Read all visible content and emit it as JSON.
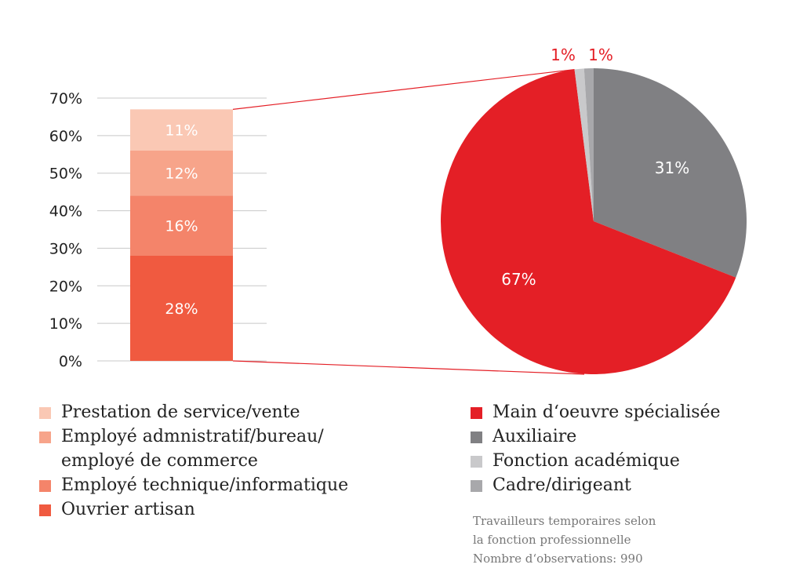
{
  "chart_data": [
    {
      "type": "bar",
      "stacked": true,
      "ylim": [
        0,
        70
      ],
      "yticks": [
        "0%",
        "10%",
        "20%",
        "30%",
        "40%",
        "50%",
        "60%",
        "70%"
      ],
      "segments": [
        {
          "name": "Ouvrier artisan",
          "value": 28,
          "label": "28%",
          "color": "#f05a40"
        },
        {
          "name": "Employé technique/informatique",
          "value": 16,
          "label": "16%",
          "color": "#f4846a"
        },
        {
          "name": "Employé admnistratif/bureau/ employé de commerce",
          "value": 12,
          "label": "12%",
          "color": "#f7a48a"
        },
        {
          "name": "Prestation de service/vente",
          "value": 11,
          "label": "11%",
          "color": "#fac8b4"
        }
      ],
      "grid": true
    },
    {
      "type": "pie",
      "slices": [
        {
          "name": "Auxiliaire",
          "value": 31,
          "label": "31%",
          "color": "#808083"
        },
        {
          "name": "Main d‘oeuvre spécialisée",
          "value": 67,
          "label": "67%",
          "color": "#e41f26"
        },
        {
          "name": "Fonction académique",
          "value": 1,
          "label": "1%",
          "color": "#c9c9cb"
        },
        {
          "name": "Cadre/dirigeant",
          "value": 1,
          "label": "1%",
          "color": "#a8a8ab"
        }
      ]
    }
  ],
  "legend_left": [
    {
      "text": "Prestation de service/vente",
      "color": "#fac8b4"
    },
    {
      "text": "Employé admnistratif/bureau/",
      "text2": "employé de commerce",
      "color": "#f7a48a"
    },
    {
      "text": "Employé technique/informatique",
      "color": "#f4846a"
    },
    {
      "text": "Ouvrier artisan",
      "color": "#f05a40"
    }
  ],
  "legend_right": [
    {
      "text": "Main d‘oeuvre spécialisée",
      "color": "#e41f26"
    },
    {
      "text": "Auxiliaire",
      "color": "#808083"
    },
    {
      "text": "Fonction académique",
      "color": "#c9c9cb"
    },
    {
      "text": "Cadre/dirigeant",
      "color": "#a8a8ab"
    }
  ],
  "note": {
    "line1": "Travailleurs temporaires selon",
    "line2": "la fonction professionnelle",
    "line3": "Nombre d‘observations: 990"
  }
}
